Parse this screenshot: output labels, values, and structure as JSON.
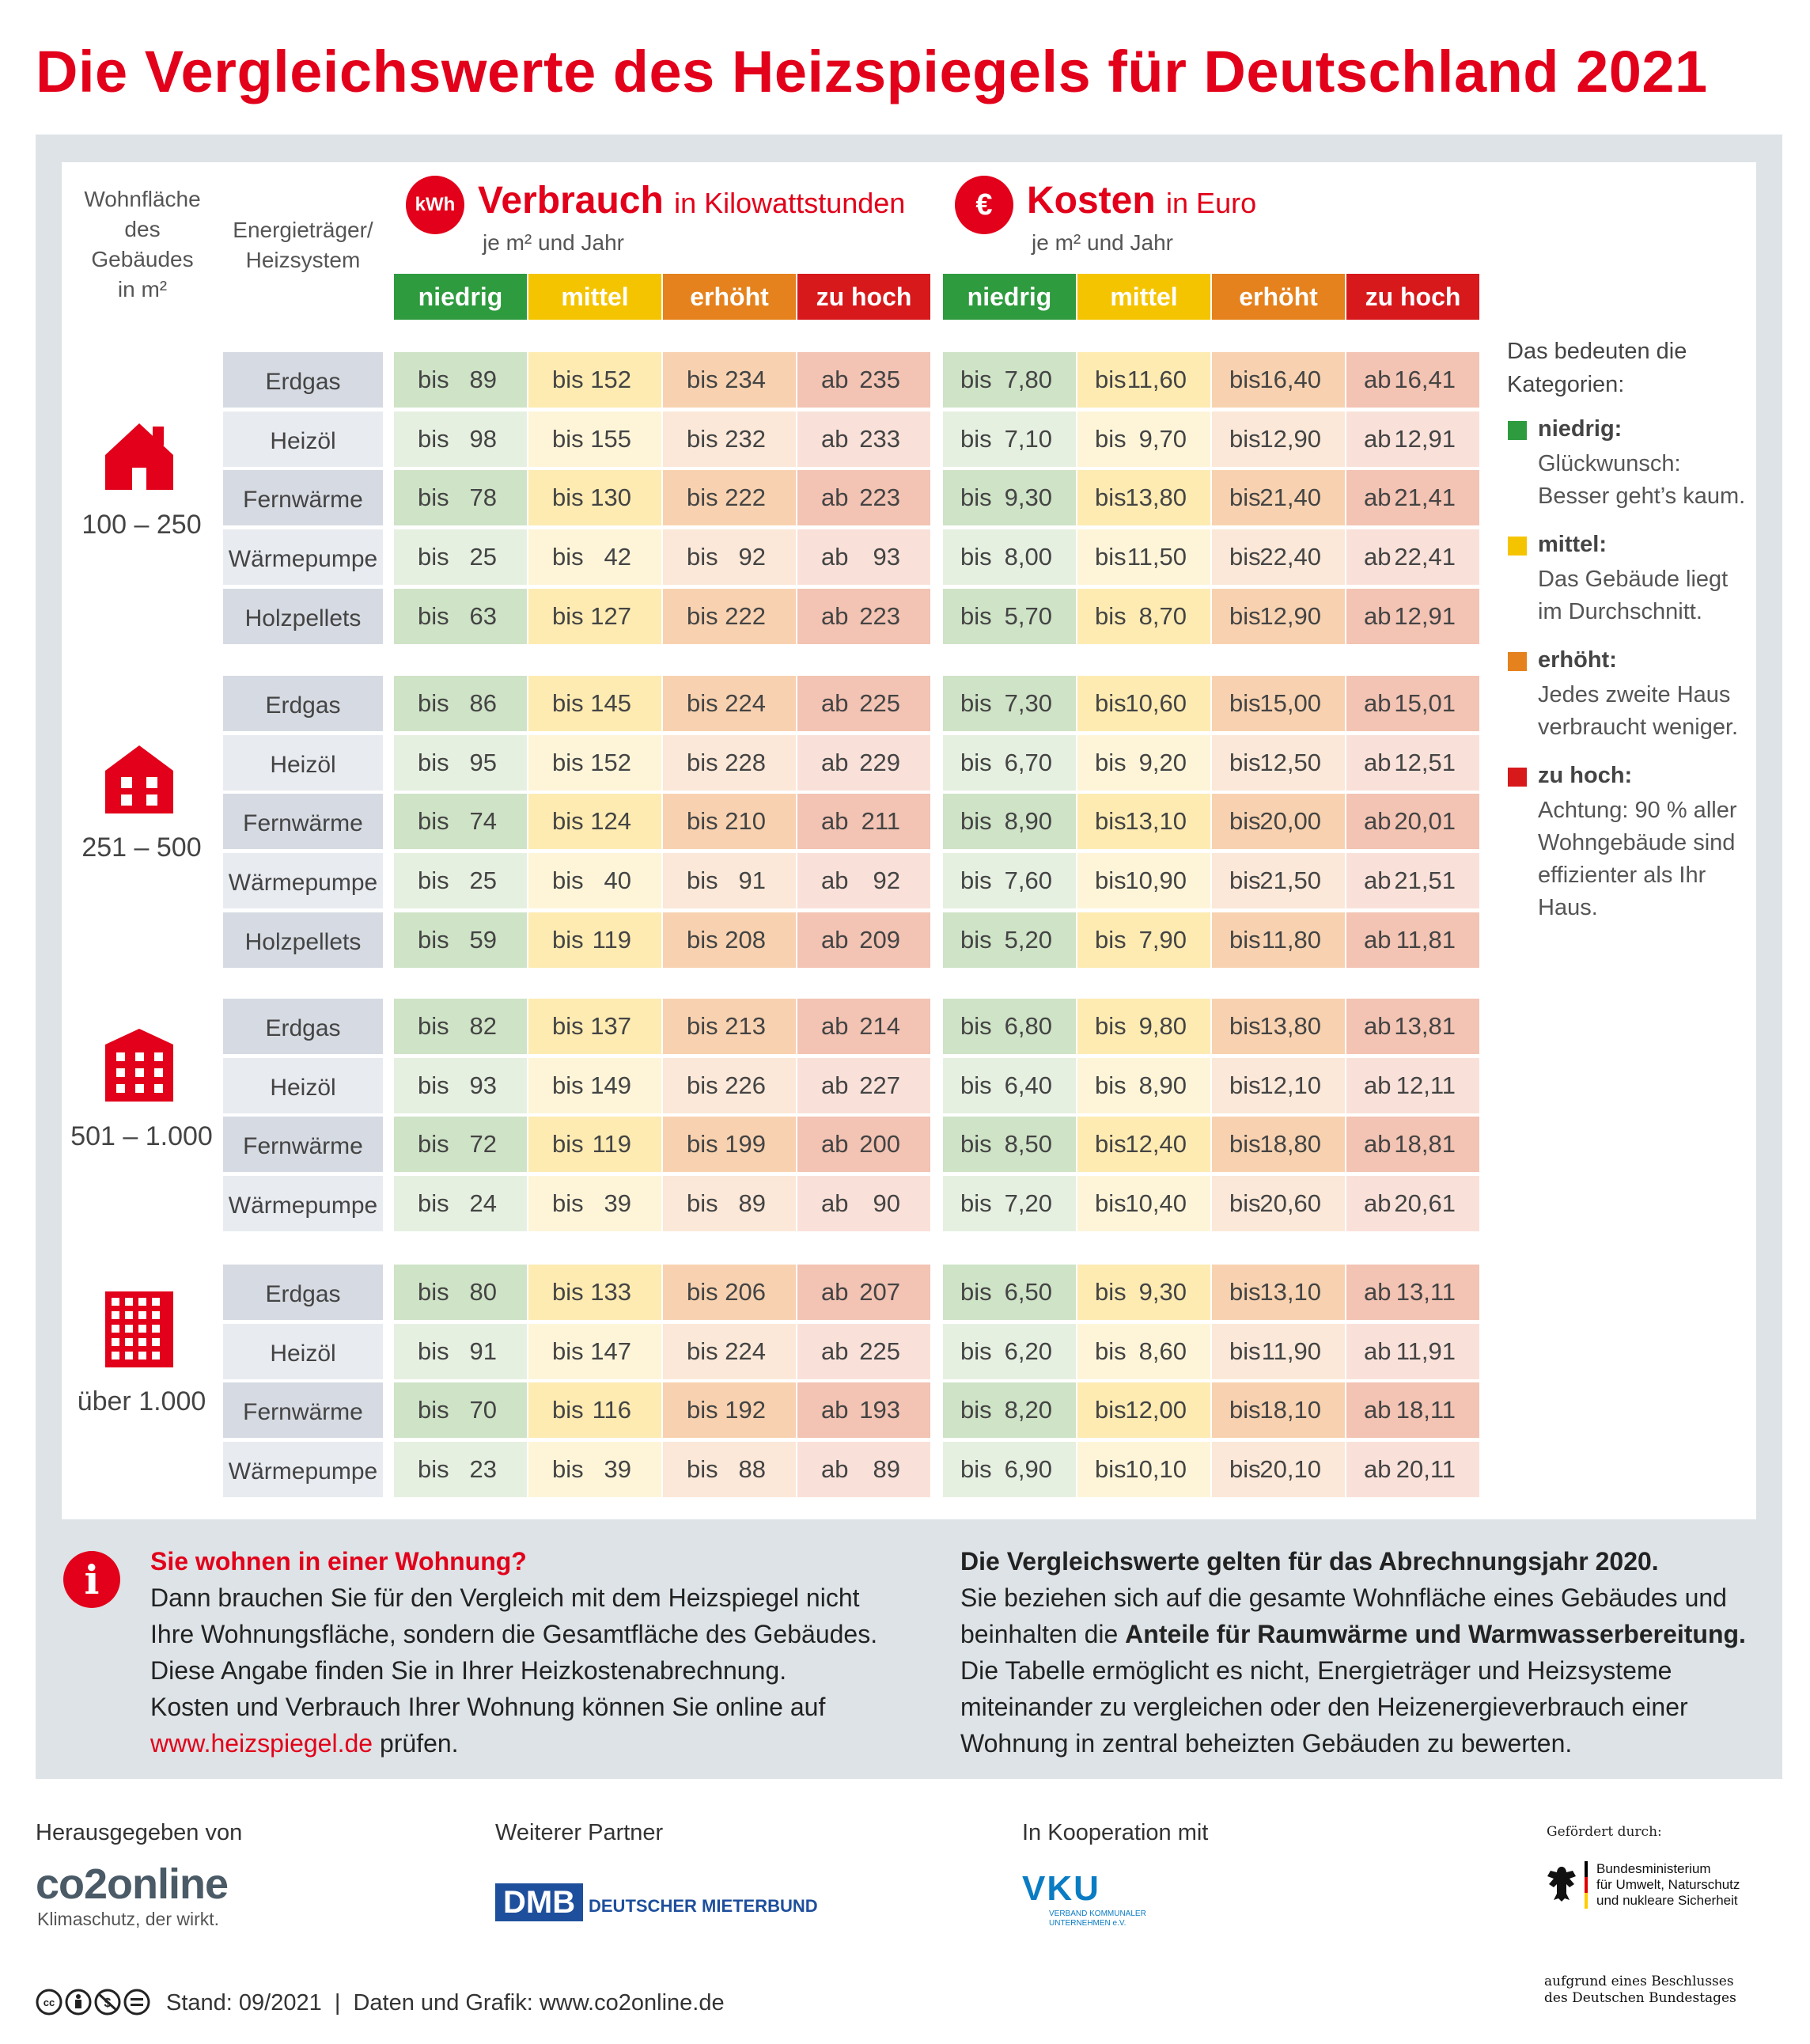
{
  "title": "Die Vergleichswerte des Heizspiegels für Deutschland 2021",
  "header": {
    "area_label_lines": [
      "Wohnfläche",
      "des",
      "Gebäudes",
      "in m²"
    ],
    "carrier_label_lines": [
      "Energieträger/",
      "Heizsystem"
    ],
    "consumption": {
      "icon_text": "kWh",
      "title": "Verbrauch",
      "unit": "in Kilowattstunden",
      "sub": "je m² und Jahr"
    },
    "cost": {
      "icon_text": "€",
      "title": "Kosten",
      "unit": "in Euro",
      "sub": "je m² und Jahr"
    },
    "categories": [
      "niedrig",
      "mittel",
      "erhöht",
      "zu hoch"
    ]
  },
  "colors": {
    "brand_red": "#e2001a",
    "niedrig": "#2e9b3e",
    "mittel": "#f5c400",
    "erhoeht": "#e5821d",
    "zu_hoch": "#d7191c"
  },
  "groups": [
    {
      "area": "100 – 250",
      "icon": "single-house-icon",
      "rows": [
        {
          "carrier": "Erdgas",
          "consumption": [
            "89",
            "152",
            "234",
            "235"
          ],
          "cost": [
            "7,80",
            "11,60",
            "16,40",
            "16,41"
          ]
        },
        {
          "carrier": "Heizöl",
          "consumption": [
            "98",
            "155",
            "232",
            "233"
          ],
          "cost": [
            "7,10",
            "9,70",
            "12,90",
            "12,91"
          ]
        },
        {
          "carrier": "Fernwärme",
          "consumption": [
            "78",
            "130",
            "222",
            "223"
          ],
          "cost": [
            "9,30",
            "13,80",
            "21,40",
            "21,41"
          ]
        },
        {
          "carrier": "Wärmepumpe",
          "consumption": [
            "25",
            "42",
            "92",
            "93"
          ],
          "cost": [
            "8,00",
            "11,50",
            "22,40",
            "22,41"
          ]
        },
        {
          "carrier": "Holzpellets",
          "consumption": [
            "63",
            "127",
            "222",
            "223"
          ],
          "cost": [
            "5,70",
            "8,70",
            "12,90",
            "12,91"
          ]
        }
      ]
    },
    {
      "area": "251 – 500",
      "icon": "multi-family-house-icon",
      "rows": [
        {
          "carrier": "Erdgas",
          "consumption": [
            "86",
            "145",
            "224",
            "225"
          ],
          "cost": [
            "7,30",
            "10,60",
            "15,00",
            "15,01"
          ]
        },
        {
          "carrier": "Heizöl",
          "consumption": [
            "95",
            "152",
            "228",
            "229"
          ],
          "cost": [
            "6,70",
            "9,20",
            "12,50",
            "12,51"
          ]
        },
        {
          "carrier": "Fernwärme",
          "consumption": [
            "74",
            "124",
            "210",
            "211"
          ],
          "cost": [
            "8,90",
            "13,10",
            "20,00",
            "20,01"
          ]
        },
        {
          "carrier": "Wärmepumpe",
          "consumption": [
            "25",
            "40",
            "91",
            "92"
          ],
          "cost": [
            "7,60",
            "10,90",
            "21,50",
            "21,51"
          ]
        },
        {
          "carrier": "Holzpellets",
          "consumption": [
            "59",
            "119",
            "208",
            "209"
          ],
          "cost": [
            "5,20",
            "7,90",
            "11,80",
            "11,81"
          ]
        }
      ]
    },
    {
      "area": "501 – 1.000",
      "icon": "apartment-building-icon",
      "rows": [
        {
          "carrier": "Erdgas",
          "consumption": [
            "82",
            "137",
            "213",
            "214"
          ],
          "cost": [
            "6,80",
            "9,80",
            "13,80",
            "13,81"
          ]
        },
        {
          "carrier": "Heizöl",
          "consumption": [
            "93",
            "149",
            "226",
            "227"
          ],
          "cost": [
            "6,40",
            "8,90",
            "12,10",
            "12,11"
          ]
        },
        {
          "carrier": "Fernwärme",
          "consumption": [
            "72",
            "119",
            "199",
            "200"
          ],
          "cost": [
            "8,50",
            "12,40",
            "18,80",
            "18,81"
          ]
        },
        {
          "carrier": "Wärmepumpe",
          "consumption": [
            "24",
            "39",
            "89",
            "90"
          ],
          "cost": [
            "7,20",
            "10,40",
            "20,60",
            "20,61"
          ]
        }
      ]
    },
    {
      "area": "über 1.000",
      "icon": "high-rise-building-icon",
      "rows": [
        {
          "carrier": "Erdgas",
          "consumption": [
            "80",
            "133",
            "206",
            "207"
          ],
          "cost": [
            "6,50",
            "9,30",
            "13,10",
            "13,11"
          ]
        },
        {
          "carrier": "Heizöl",
          "consumption": [
            "91",
            "147",
            "224",
            "225"
          ],
          "cost": [
            "6,20",
            "8,60",
            "11,90",
            "11,91"
          ]
        },
        {
          "carrier": "Fernwärme",
          "consumption": [
            "70",
            "116",
            "192",
            "193"
          ],
          "cost": [
            "8,20",
            "12,00",
            "18,10",
            "18,11"
          ]
        },
        {
          "carrier": "Wärmepumpe",
          "consumption": [
            "23",
            "39",
            "88",
            "89"
          ],
          "cost": [
            "6,90",
            "10,10",
            "20,10",
            "20,11"
          ]
        }
      ]
    }
  ],
  "prefix": {
    "upto": "bis",
    "from": "ab"
  },
  "legend": {
    "intro": [
      "Das bedeuten die",
      "Kategorien:"
    ],
    "items": [
      {
        "heading": "niedrig:",
        "lines": [
          "Glückwunsch:",
          "Besser geht’s kaum."
        ]
      },
      {
        "heading": "mittel:",
        "lines": [
          "Das Gebäude liegt",
          "im Durchschnitt."
        ]
      },
      {
        "heading": "erhöht:",
        "lines": [
          "Jedes zweite Haus",
          "verbraucht weniger."
        ]
      },
      {
        "heading": "zu hoch:",
        "lines": [
          "Achtung: 90 % aller",
          "Wohngebäude sind",
          "effizienter als Ihr",
          "Haus."
        ]
      }
    ]
  },
  "info_left": {
    "icon_text": "i",
    "heading": "Sie wohnen in einer Wohnung?",
    "lines": [
      "Dann brauchen Sie für den Vergleich mit dem Heizspiegel nicht",
      "Ihre Wohnungsfläche, sondern die Gesamtfläche des Gebäudes.",
      "Diese Angabe finden Sie in Ihrer Heizkostenabrechnung.",
      "Kosten und Verbrauch Ihrer Wohnung können Sie online auf"
    ],
    "link": "www.heizspiegel.de",
    "link_suffix": " prüfen."
  },
  "info_right": {
    "heading": "Die Vergleichswerte gelten für das Abrechnungsjahr 2020.",
    "line1": "Sie beziehen sich auf die gesamte Wohnfläche eines Gebäudes und",
    "line2_prefix": "beinhalten die ",
    "line2_bold": "Anteile für Raumwärme und Warmwasserbereitung.",
    "lines": [
      "Die Tabelle ermöglicht es nicht, Energieträger und Heizsysteme",
      "miteinander zu vergleichen oder den Heizenergieverbrauch einer",
      "Wohnung in zentral beheizten Gebäuden zu bewerten."
    ]
  },
  "footer": {
    "publisher_label": "Herausgegeben von",
    "publisher_logo": "co2online",
    "publisher_tagline": "Klimaschutz, der wirkt.",
    "partner_label": "Weiterer Partner",
    "partner_logo": "DMB",
    "partner_name": "DEUTSCHER MIETERBUND",
    "coop_label": "In Kooperation mit",
    "coop_logo": "VKU",
    "coop_sub1": "VERBAND KOMMUNALER",
    "coop_sub2": "UNTERNEHMEN e.V.",
    "funded_label": "Gefördert durch:",
    "ministry_lines": [
      "Bundesministerium",
      "für Umwelt, Naturschutz",
      "und nukleare Sicherheit"
    ],
    "resolution_lines": [
      "aufgrund eines Beschlusses",
      "des Deutschen Bundestages"
    ],
    "license_icons": [
      "cc-icon",
      "by-icon",
      "nc-icon",
      "nd-icon"
    ],
    "stand": "Stand: 09/2021  |  Daten und Grafik: www.co2online.de"
  }
}
